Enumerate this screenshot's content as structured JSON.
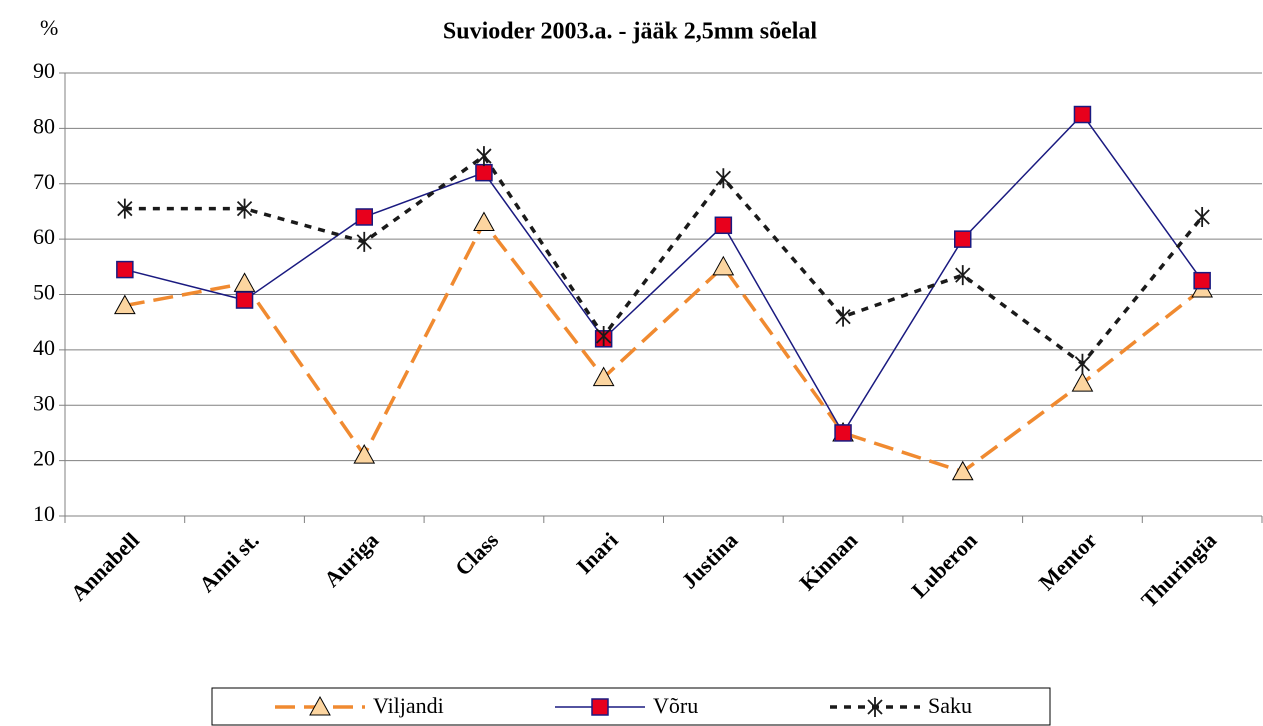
{
  "chart_data": {
    "type": "line",
    "title": "Suvioder 2003.a. - jääk 2,5mm sõelal",
    "y_label": "%",
    "categories": [
      "Annabell",
      "Anni st.",
      "Auriga",
      "Class",
      "Inari",
      "Justina",
      "Kinnan",
      "Luberon",
      "Mentor",
      "Thuringia"
    ],
    "series": [
      {
        "name": "Viljandi",
        "color": "#f08a30",
        "marker": "triangle",
        "marker_color": "#fcd5a0",
        "line": "dashed",
        "values": [
          48,
          52,
          21,
          63,
          35,
          55,
          25,
          18,
          34,
          51
        ]
      },
      {
        "name": "Võru",
        "color": "#1a1a80",
        "marker": "square",
        "marker_color": "#e8001c",
        "line": "solid",
        "values": [
          54.5,
          49,
          64,
          72,
          42,
          62.5,
          25,
          60,
          82.5,
          52.5
        ]
      },
      {
        "name": "Saku",
        "color": "#1a1a1a",
        "marker": "asterisk",
        "marker_color": "#1a1a1a",
        "line": "dotted",
        "values": [
          65.5,
          65.5,
          59.5,
          75,
          42.5,
          71,
          46,
          53.5,
          37.5,
          64
        ]
      }
    ],
    "ylim": [
      10,
      90
    ],
    "yticks": [
      10,
      20,
      30,
      40,
      50,
      60,
      70,
      80,
      90
    ],
    "grid": true,
    "legend": "bottom"
  }
}
